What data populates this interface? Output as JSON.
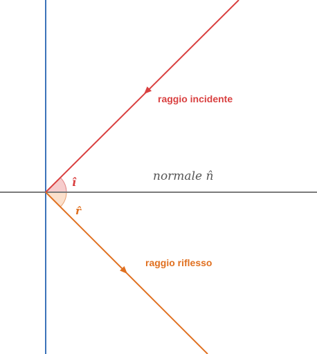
{
  "diagram": {
    "incident_label": "raggio incidente",
    "reflected_label": "raggio riflesso",
    "normal_label": "normale n̂",
    "angle_incidence_label": "î",
    "angle_reflection_label": "r̂"
  },
  "colors": {
    "mirror": "#3b73b9",
    "normal": "#7a7a7a",
    "incident": "#d94040",
    "reflected": "#e07020",
    "angle_fill": "#f6cccc",
    "math_text": "#555555"
  }
}
